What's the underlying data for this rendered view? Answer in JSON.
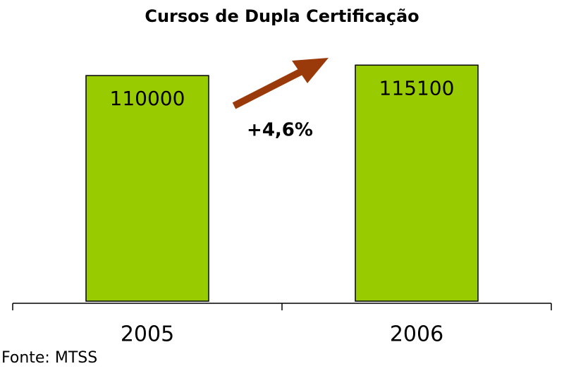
{
  "chart_data": {
    "type": "bar",
    "title": "Cursos de Dupla Certificação",
    "categories": [
      "2005",
      "2006"
    ],
    "values": [
      110000,
      115100
    ],
    "color": "#99cc00",
    "ylim": [
      0,
      130000
    ],
    "annotation": "+4,6%",
    "source": "Fonte: MTSS"
  }
}
